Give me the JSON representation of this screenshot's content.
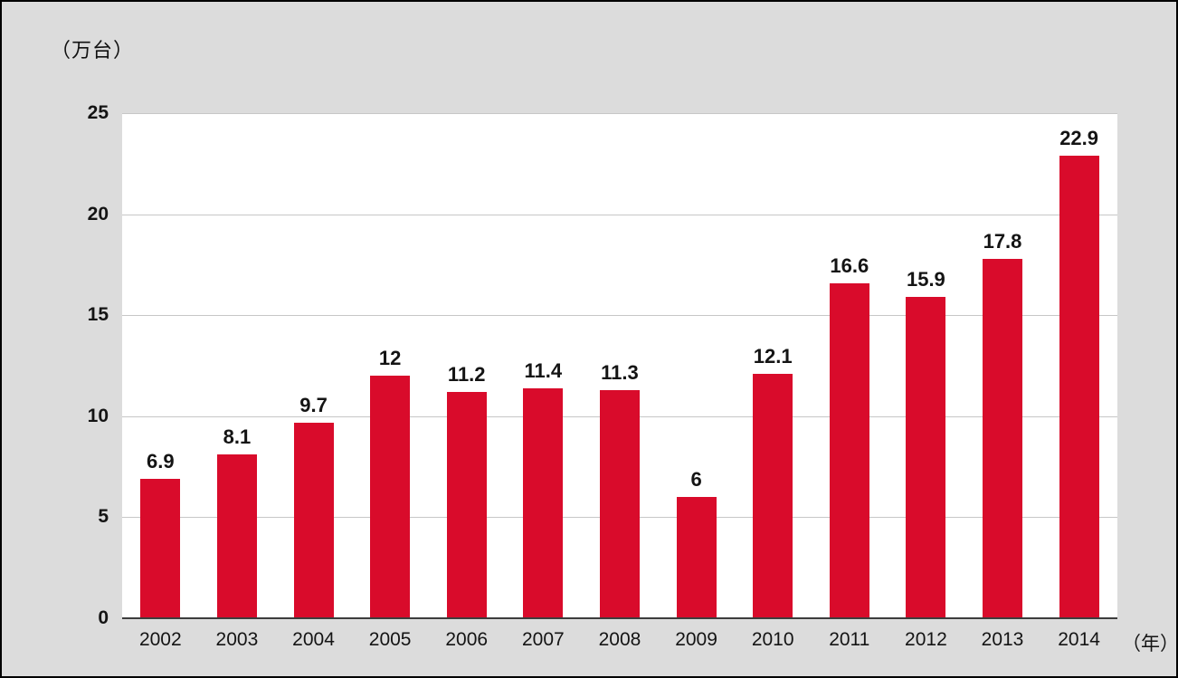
{
  "chart_data": {
    "type": "bar",
    "title": "",
    "xlabel": "",
    "ylabel": "",
    "unit_label": "（万台）",
    "x_axis_suffix": "（年）",
    "categories": [
      "2002",
      "2003",
      "2004",
      "2005",
      "2006",
      "2007",
      "2008",
      "2009",
      "2010",
      "2011",
      "2012",
      "2013",
      "2014"
    ],
    "values": [
      6.9,
      8.1,
      9.7,
      12,
      11.2,
      11.4,
      11.3,
      6,
      12.1,
      16.6,
      15.9,
      17.8,
      22.9
    ],
    "value_labels": [
      "6.9",
      "8.1",
      "9.7",
      "12",
      "11.2",
      "11.4",
      "11.3",
      "6",
      "12.1",
      "16.6",
      "15.9",
      "17.8",
      "22.9"
    ],
    "ylim": [
      0,
      25
    ],
    "yticks": [
      0,
      5,
      10,
      15,
      20,
      25
    ],
    "grid": "horizontal",
    "legend": "none",
    "colors": {
      "bar": "#d90b2b",
      "canvas_background": "#dcdcdc",
      "plot_background": "#ffffff",
      "gridline": "#c7c7c7",
      "axis_line": "#3d3d3d",
      "text": "#141414",
      "frame_border": "#000000"
    }
  }
}
